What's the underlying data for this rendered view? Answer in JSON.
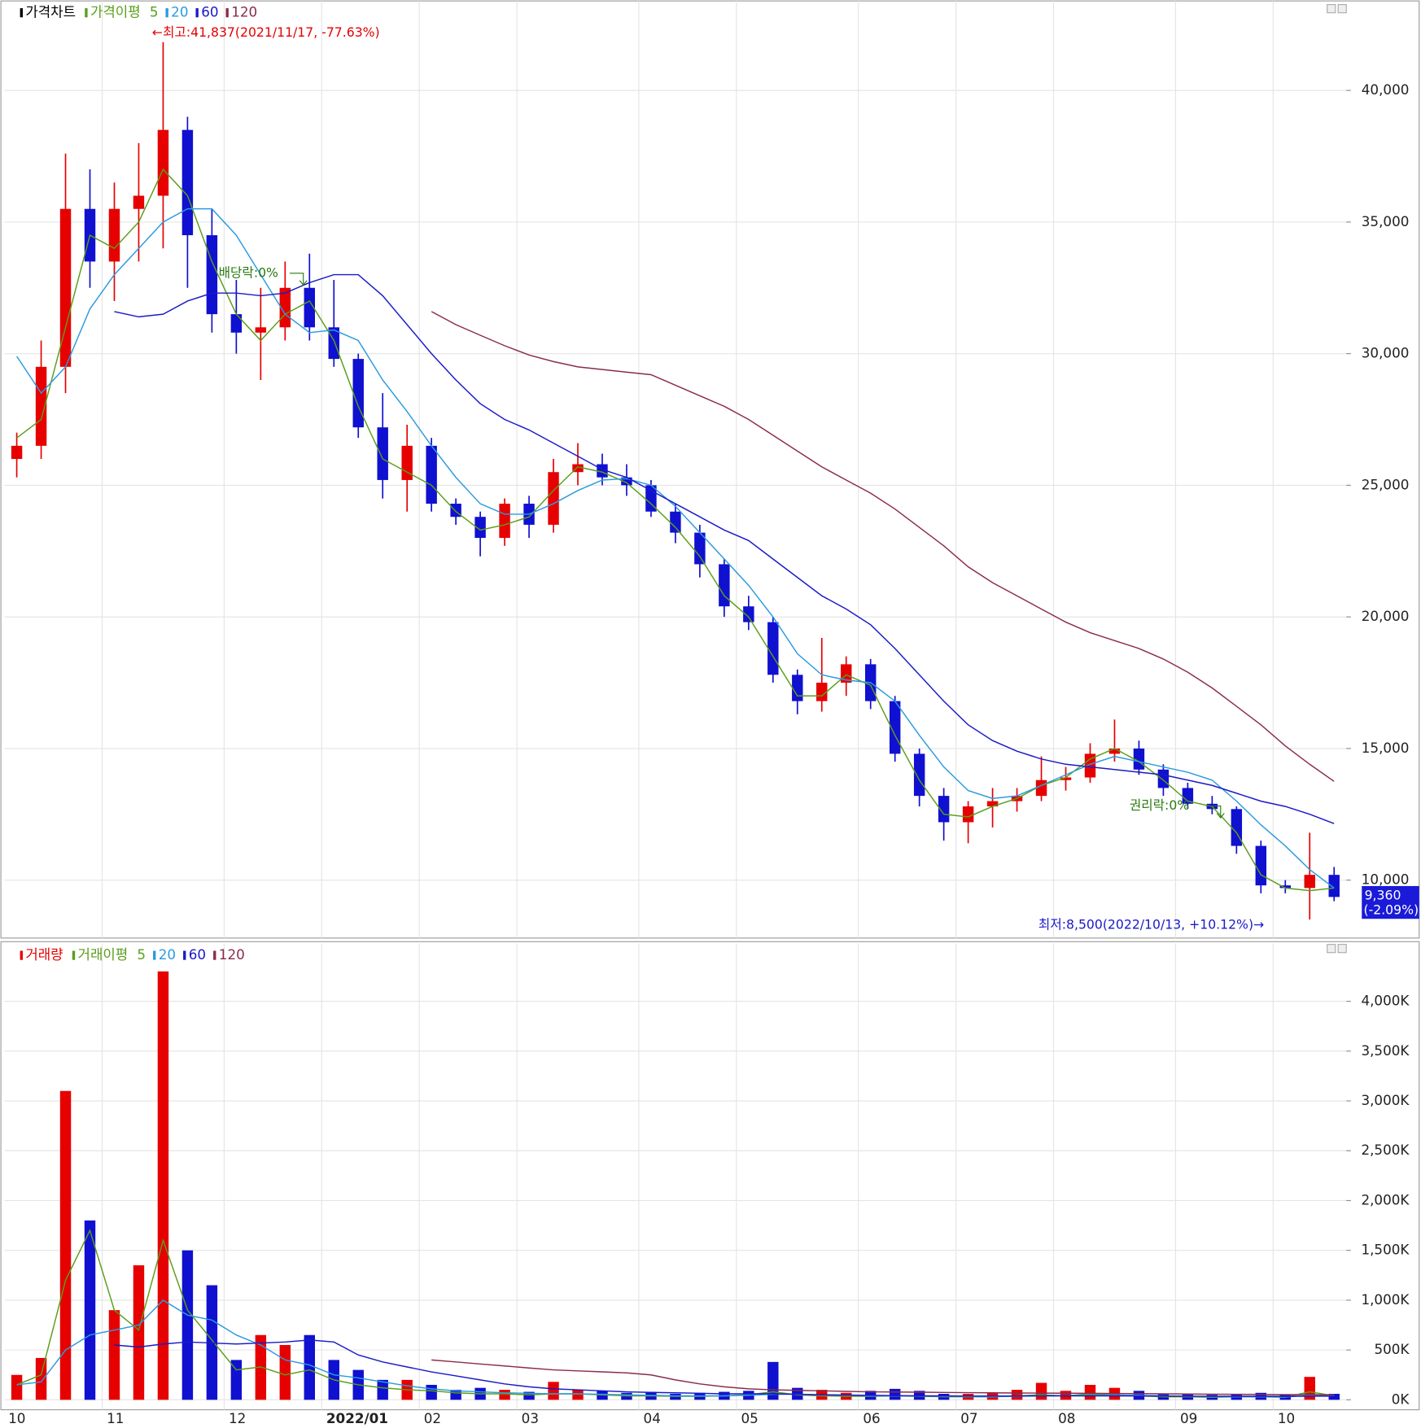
{
  "chart_data": [
    {
      "type": "candlestick",
      "legend_title": "가격차트",
      "ma_title": "가격이평",
      "up_color": "#e60000",
      "down_color": "#1010d0",
      "open": [
        26000,
        26500,
        29500,
        35500,
        33500,
        35500,
        36000,
        38500,
        34500,
        31500,
        30800,
        31000,
        32500,
        31000,
        29800,
        27200,
        25200,
        26500,
        24300,
        23800,
        23000,
        24300,
        23500,
        25500,
        25800,
        25300,
        25000,
        24000,
        23200,
        22000,
        20400,
        19800,
        17800,
        16800,
        17500,
        18200,
        16800,
        14800,
        13200,
        12200,
        12800,
        13000,
        13200,
        13800,
        13900,
        14800,
        15000,
        14200,
        13500,
        12900,
        12700,
        11300,
        9800,
        9700,
        10200
      ],
      "high": [
        27000,
        30500,
        37600,
        37000,
        36500,
        38000,
        41837,
        39000,
        35500,
        32800,
        32500,
        33500,
        33800,
        32800,
        30000,
        28500,
        27300,
        26800,
        24500,
        24000,
        24500,
        24600,
        26000,
        26600,
        26200,
        25800,
        25200,
        24300,
        23500,
        22200,
        20800,
        20000,
        18000,
        19200,
        18500,
        18400,
        17000,
        15000,
        13500,
        13000,
        13500,
        13500,
        14700,
        14300,
        15200,
        16100,
        15300,
        14400,
        13700,
        13200,
        12800,
        11500,
        10000,
        11800,
        10500
      ],
      "low": [
        25300,
        26000,
        28500,
        32500,
        32000,
        33500,
        34000,
        32500,
        30800,
        30000,
        29000,
        30500,
        30500,
        29500,
        26800,
        24500,
        24000,
        24000,
        23500,
        22300,
        22700,
        23000,
        23200,
        25000,
        25000,
        24600,
        23800,
        22800,
        21500,
        20000,
        19500,
        17500,
        16300,
        16400,
        17000,
        16500,
        14500,
        12800,
        11500,
        11400,
        12000,
        12600,
        13000,
        13400,
        13700,
        14500,
        14000,
        13200,
        12700,
        12500,
        11000,
        9500,
        9500,
        8500,
        9200
      ],
      "close": [
        26500,
        29500,
        35500,
        33500,
        35500,
        36000,
        38500,
        34500,
        31500,
        30800,
        31000,
        32500,
        31000,
        29800,
        27200,
        25200,
        26500,
        24300,
        23800,
        23000,
        24300,
        23500,
        25500,
        25800,
        25300,
        25000,
        24000,
        23200,
        22000,
        20400,
        19800,
        17800,
        16800,
        17500,
        18200,
        16800,
        14800,
        13200,
        12200,
        12800,
        13000,
        13200,
        13800,
        13900,
        14800,
        15000,
        14200,
        13500,
        12900,
        12700,
        11300,
        9800,
        9700,
        10200,
        9360
      ],
      "series": [
        {
          "name": "5",
          "color": "#5a9e1a",
          "values": [
            26800,
            27500,
            31000,
            34500,
            34000,
            35000,
            37000,
            36000,
            33500,
            31500,
            30500,
            31500,
            32000,
            30500,
            28000,
            26000,
            25500,
            25000,
            24000,
            23300,
            23500,
            23800,
            24800,
            25700,
            25500,
            25100,
            24300,
            23400,
            22300,
            20800,
            20000,
            18500,
            17000,
            17000,
            17800,
            17400,
            15500,
            13800,
            12500,
            12400,
            12800,
            13100,
            13600,
            13900,
            14600,
            15000,
            14500,
            13800,
            13000,
            12800,
            11800,
            10200,
            9700,
            9600,
            9700
          ]
        },
        {
          "name": "20",
          "color": "#2b9ae0",
          "values": [
            29900,
            28500,
            29500,
            31700,
            33000,
            34000,
            35000,
            35500,
            35500,
            34500,
            33000,
            31500,
            30800,
            30900,
            30500,
            29000,
            27800,
            26500,
            25300,
            24300,
            23900,
            23900,
            24300,
            24800,
            25200,
            25250,
            25000,
            24200,
            23200,
            22200,
            21200,
            20000,
            18600,
            17800,
            17600,
            17500,
            16800,
            15500,
            14300,
            13400,
            13100,
            13200,
            13600,
            14000,
            14400,
            14700,
            14500,
            14300,
            14100,
            13800,
            13000,
            12100,
            11300,
            10400,
            9700
          ]
        },
        {
          "name": "60",
          "color": "#1a1ac8",
          "values": [
            null,
            null,
            null,
            null,
            31600,
            31400,
            31500,
            32000,
            32300,
            32300,
            32200,
            32300,
            32700,
            33000,
            33000,
            32200,
            31100,
            30000,
            29000,
            28100,
            27500,
            27100,
            26600,
            26100,
            25600,
            25300,
            24800,
            24300,
            23800,
            23300,
            22900,
            22200,
            21500,
            20800,
            20300,
            19700,
            18800,
            17800,
            16800,
            15900,
            15300,
            14900,
            14600,
            14400,
            14300,
            14200,
            14100,
            14000,
            13800,
            13600,
            13300,
            13000,
            12800,
            12500,
            12150
          ]
        },
        {
          "name": "120",
          "color": "#8b2c4a",
          "values": [
            null,
            null,
            null,
            null,
            null,
            null,
            null,
            null,
            null,
            null,
            null,
            null,
            null,
            null,
            null,
            null,
            null,
            31600,
            31100,
            30700,
            30300,
            29950,
            29700,
            29500,
            29400,
            29300,
            29200,
            28800,
            28400,
            28000,
            27500,
            26900,
            26300,
            25700,
            25200,
            24700,
            24100,
            23400,
            22700,
            21900,
            21300,
            20800,
            20300,
            19800,
            19400,
            19100,
            18800,
            18400,
            17900,
            17300,
            16600,
            15900,
            15100,
            14400,
            13750
          ]
        }
      ],
      "ylim": [
        7800,
        43400
      ],
      "yticks": [
        {
          "value": 10000,
          "label": "10,000"
        },
        {
          "value": 15000,
          "label": "15,000"
        },
        {
          "value": 20000,
          "label": "20,000"
        },
        {
          "value": 25000,
          "label": "25,000"
        },
        {
          "value": 30000,
          "label": "30,000"
        },
        {
          "value": 35000,
          "label": "35,000"
        },
        {
          "value": 40000,
          "label": "40,000"
        }
      ],
      "grid": true,
      "last_price": {
        "value": 9360,
        "label": "9,360",
        "change": "(-2.09%)"
      },
      "annotations": [
        "←최고:41,837(2021/11/17, -77.63%)",
        "배당락:0%",
        "권리락:0%",
        "최저:8,500(2022/10/13, +10.12%)→"
      ]
    },
    {
      "type": "bar",
      "legend_title": "거래량",
      "ma_title": "거래이평",
      "categories": [
        "10",
        null,
        null,
        null,
        "11",
        null,
        null,
        null,
        null,
        "12",
        null,
        null,
        null,
        "2022/01",
        null,
        null,
        null,
        "02",
        null,
        null,
        null,
        "03",
        null,
        null,
        null,
        null,
        "04",
        null,
        null,
        null,
        "05",
        null,
        null,
        null,
        null,
        "06",
        null,
        null,
        null,
        "07",
        null,
        null,
        null,
        "08",
        null,
        null,
        null,
        null,
        "09",
        null,
        null,
        null,
        "10",
        null,
        null
      ],
      "values": [
        250,
        420,
        3100,
        1800,
        900,
        1350,
        4300,
        1500,
        1150,
        400,
        650,
        550,
        650,
        400,
        300,
        200,
        200,
        150,
        100,
        120,
        100,
        80,
        180,
        100,
        90,
        70,
        80,
        60,
        70,
        80,
        90,
        380,
        120,
        100,
        70,
        90,
        110,
        90,
        60,
        60,
        70,
        100,
        170,
        90,
        150,
        120,
        90,
        60,
        60,
        50,
        60,
        70,
        50,
        230,
        60
      ],
      "series": [
        {
          "name": "5",
          "color": "#5a9e1a",
          "values": [
            150,
            250,
            1200,
            1700,
            900,
            700,
            1600,
            900,
            600,
            300,
            330,
            250,
            300,
            200,
            150,
            120,
            100,
            90,
            70,
            60,
            60,
            50,
            60,
            60,
            50,
            40,
            40,
            35,
            35,
            40,
            50,
            80,
            50,
            40,
            35,
            35,
            40,
            35,
            30,
            30,
            30,
            40,
            50,
            40,
            60,
            50,
            40,
            30,
            30,
            25,
            30,
            30,
            25,
            80,
            40
          ]
        },
        {
          "name": "20",
          "color": "#2b9ae0",
          "values": [
            150,
            180,
            500,
            650,
            700,
            750,
            1000,
            850,
            800,
            650,
            550,
            400,
            350,
            250,
            220,
            180,
            140,
            110,
            90,
            80,
            70,
            65,
            60,
            60,
            55,
            50,
            45,
            40,
            40,
            40,
            45,
            55,
            55,
            50,
            45,
            40,
            40,
            38,
            35,
            33,
            32,
            35,
            40,
            42,
            45,
            48,
            45,
            40,
            35,
            32,
            30,
            30,
            28,
            45,
            45
          ]
        },
        {
          "name": "60",
          "color": "#1a1ac8",
          "values": [
            null,
            null,
            null,
            null,
            550,
            530,
            560,
            580,
            570,
            560,
            570,
            580,
            600,
            580,
            450,
            380,
            330,
            280,
            240,
            200,
            160,
            130,
            110,
            100,
            90,
            80,
            75,
            70,
            65,
            60,
            60,
            60,
            55,
            50,
            48,
            45,
            42,
            40,
            40,
            38,
            38,
            38,
            40,
            40,
            40,
            40,
            38,
            38,
            36,
            36,
            35,
            35,
            34,
            36,
            36
          ]
        },
        {
          "name": "120",
          "color": "#8b2c4a",
          "values": [
            null,
            null,
            null,
            null,
            null,
            null,
            null,
            null,
            null,
            null,
            null,
            null,
            null,
            null,
            null,
            null,
            null,
            400,
            380,
            360,
            340,
            320,
            300,
            290,
            280,
            270,
            250,
            200,
            160,
            130,
            110,
            100,
            95,
            90,
            85,
            80,
            78,
            76,
            74,
            72,
            70,
            68,
            67,
            66,
            65,
            64,
            62,
            60,
            58,
            56,
            55,
            54,
            52,
            52,
            50
          ]
        }
      ],
      "ylim": [
        -100,
        4580
      ],
      "yticks": [
        {
          "value": 0,
          "label": "0K"
        },
        {
          "value": 500,
          "label": "500K"
        },
        {
          "value": 1000,
          "label": "1,000K"
        },
        {
          "value": 1500,
          "label": "1,500K"
        },
        {
          "value": 2000,
          "label": "2,000K"
        },
        {
          "value": 2500,
          "label": "2,500K"
        },
        {
          "value": 3000,
          "label": "3,000K"
        },
        {
          "value": 3500,
          "label": "3,500K"
        },
        {
          "value": 4000,
          "label": "4,000K"
        }
      ],
      "grid": true
    }
  ]
}
